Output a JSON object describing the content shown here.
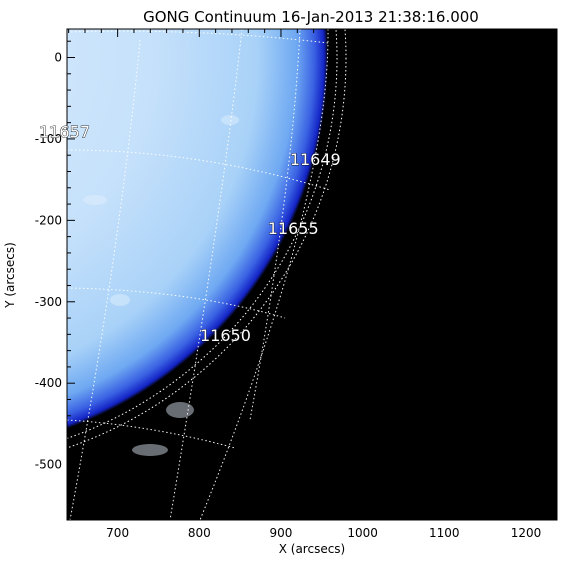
{
  "title": "GONG Continuum 16-Jan-2013 21:38:16.000",
  "x_axis": {
    "label": "X (arcsecs)",
    "range": [
      638,
      1238
    ],
    "ticks": [
      "700",
      "800",
      "900",
      "1000",
      "1100",
      "1200"
    ],
    "tick_values": [
      700,
      800,
      900,
      1000,
      1100,
      1200
    ]
  },
  "y_axis": {
    "label": "Y (arcsecs)",
    "range": [
      -568,
      35
    ],
    "ticks": [
      "0",
      "-100",
      "-200",
      "-300",
      "-400",
      "-500"
    ],
    "tick_values": [
      0,
      -100,
      -200,
      -300,
      -400,
      -500
    ]
  },
  "active_regions": [
    {
      "label": "11657",
      "x": 635,
      "y": -98
    },
    {
      "label": "11649",
      "x": 942,
      "y": -132
    },
    {
      "label": "11655",
      "x": 915,
      "y": -217
    },
    {
      "label": "11650",
      "x": 832,
      "y": -348
    }
  ],
  "colors": {
    "disk": "#cfe6fb",
    "limb": "#1a2fd0",
    "space": "#000000",
    "grid": "#ffffff"
  }
}
